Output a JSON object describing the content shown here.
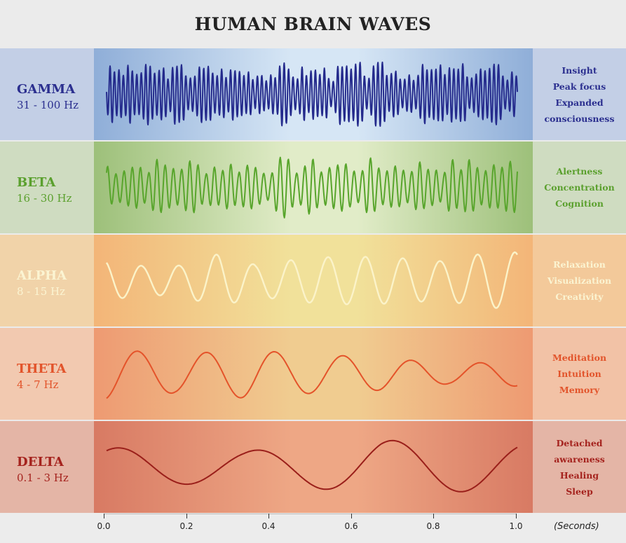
{
  "title": "HUMAN BRAIN WAVES",
  "bands": [
    {
      "name": "GAMMA",
      "freq": "31 - 100 Hz",
      "desc": [
        "Insight",
        "Peak focus",
        "Expanded",
        "consciousness"
      ],
      "color": "#2b2f8f",
      "wave_color": "#242a8c",
      "label_bg": "#c3cfe6",
      "desc_bg": "#c3cfe6",
      "grad_center": "#d6e6f5",
      "grad_edge": "#8faed8",
      "wave": {
        "count": 92,
        "amp": 0.36,
        "seed": 3
      }
    },
    {
      "name": "BETA",
      "freq": "16 - 30 Hz",
      "desc": [
        "Alertness",
        "Concentration",
        "Cognition"
      ],
      "color": "#5ba02e",
      "wave_color": "#58a52c",
      "label_bg": "#cfdcc1",
      "desc_bg": "#cfdcc1",
      "grad_center": "#e1ecc8",
      "grad_edge": "#9dc07a",
      "wave": {
        "count": 50,
        "amp": 0.34,
        "seed": 7
      }
    },
    {
      "name": "ALPHA",
      "freq": "8 - 15 Hz",
      "desc": [
        "Relaxation",
        "Visualization",
        "Creativity"
      ],
      "color": "#fbf4d2",
      "wave_color": "#fbf3c9",
      "label_bg": "#f1d3a9",
      "desc_bg": "#f3c99a",
      "grad_center": "#f1e19a",
      "grad_edge": "#f3b578",
      "wave": {
        "count": 11,
        "amp": 0.36,
        "seed": 2
      }
    },
    {
      "name": "THETA",
      "freq": "4 - 7 Hz",
      "desc": [
        "Meditation",
        "Intuition",
        "Memory"
      ],
      "color": "#e2542b",
      "wave_color": "#e4532a",
      "label_bg": "#f2c9b0",
      "desc_bg": "#f2c2a6",
      "grad_center": "#f0cc90",
      "grad_edge": "#ee9a72",
      "wave": {
        "count": 6,
        "amp": 0.3,
        "seed": 5
      }
    },
    {
      "name": "DELTA",
      "freq": "0.1 - 3 Hz",
      "desc": [
        "Detached",
        "awareness",
        "Healing",
        "Sleep"
      ],
      "color": "#a5231e",
      "wave_color": "#9a1f1a",
      "label_bg": "#e4b5a6",
      "desc_bg": "#e4b5a6",
      "grad_center": "#eea785",
      "grad_edge": "#d87a63",
      "wave": {
        "count": 3,
        "amp": 0.3,
        "seed": 1
      }
    }
  ],
  "axis": {
    "ticks": [
      "0.0",
      "0.2",
      "0.4",
      "0.6",
      "0.8",
      "1.0"
    ],
    "unit": "(Seconds)"
  }
}
